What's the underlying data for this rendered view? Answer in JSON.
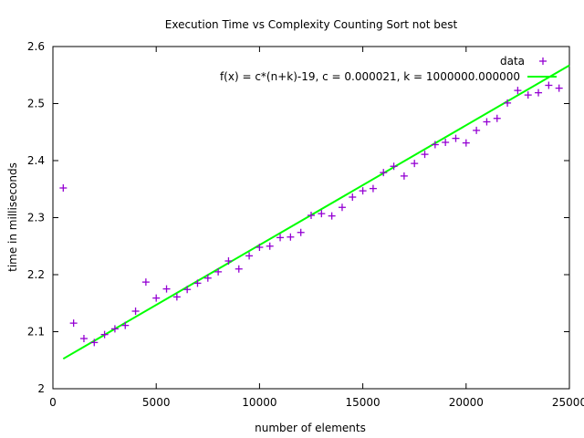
{
  "chart_data": {
    "type": "scatter",
    "title": "Execution Time vs Complexity Counting Sort not best",
    "xlabel": "number of elements",
    "ylabel": "time in milliseconds",
    "xlim": [
      0,
      25000
    ],
    "ylim": [
      2,
      2.6
    ],
    "xticks": [
      0,
      5000,
      10000,
      15000,
      20000,
      25000
    ],
    "xtick_labels": [
      "0",
      "5000",
      "10000",
      "15000",
      "20000",
      "25000"
    ],
    "yticks": [
      2,
      2.1,
      2.2,
      2.3,
      2.4,
      2.5,
      2.6
    ],
    "ytick_labels": [
      "2",
      "2.1",
      "2.2",
      "2.3",
      "2.4",
      "2.5",
      "2.6"
    ],
    "grid": false,
    "legend_position": "top-right",
    "series": [
      {
        "name": "data",
        "type": "scatter",
        "marker": "+",
        "color": "#9400d3",
        "x": [
          500,
          1000,
          1500,
          2000,
          2500,
          3000,
          3500,
          4000,
          4500,
          5000,
          5500,
          6000,
          6500,
          7000,
          7500,
          8000,
          8500,
          9000,
          9500,
          10000,
          10500,
          11000,
          11500,
          12000,
          12500,
          13000,
          13500,
          14000,
          14500,
          15000,
          15500,
          16000,
          16500,
          17000,
          17500,
          18000,
          18500,
          19000,
          19500,
          20000,
          20500,
          21000,
          21500,
          22000,
          22500,
          23000,
          23500,
          24000,
          24500
        ],
        "y": [
          2.352,
          2.115,
          2.088,
          2.081,
          2.095,
          2.105,
          2.111,
          2.136,
          2.187,
          2.159,
          2.175,
          2.161,
          2.174,
          2.185,
          2.194,
          2.205,
          2.224,
          2.21,
          2.233,
          2.248,
          2.25,
          2.265,
          2.266,
          2.274,
          2.304,
          2.307,
          2.303,
          2.318,
          2.336,
          2.347,
          2.351,
          2.379,
          2.39,
          2.373,
          2.395,
          2.411,
          2.428,
          2.432,
          2.439,
          2.431,
          2.453,
          2.468,
          2.474,
          2.501,
          2.523,
          2.515,
          2.519,
          2.532,
          2.527
        ]
      },
      {
        "name": "f(x) = c*(n+k)-19, c = 0.000021, k = 1000000.000000",
        "type": "line",
        "color": "#00ff00",
        "x": [
          500,
          25000
        ],
        "y": [
          2.0525,
          2.567
        ]
      }
    ]
  }
}
